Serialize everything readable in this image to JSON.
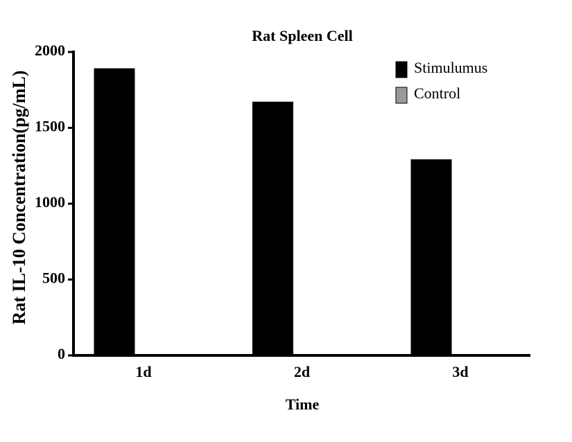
{
  "chart_data": {
    "type": "bar",
    "title": "Rat Spleen Cell",
    "x_label": "Time",
    "y_label": "Rat IL-10 Concentration(pg/mL)",
    "categories": [
      "1d",
      "2d",
      "3d"
    ],
    "series": [
      {
        "name": "Stimulumus",
        "color": "#000000",
        "values": [
          1890,
          1670,
          1290
        ]
      },
      {
        "name": "Control",
        "color": "#999999",
        "values": [
          0,
          0,
          0
        ]
      }
    ],
    "ylim": [
      0,
      2000
    ],
    "yticks": [
      0,
      500,
      1000,
      1500,
      2000
    ],
    "legend": "top-right"
  }
}
